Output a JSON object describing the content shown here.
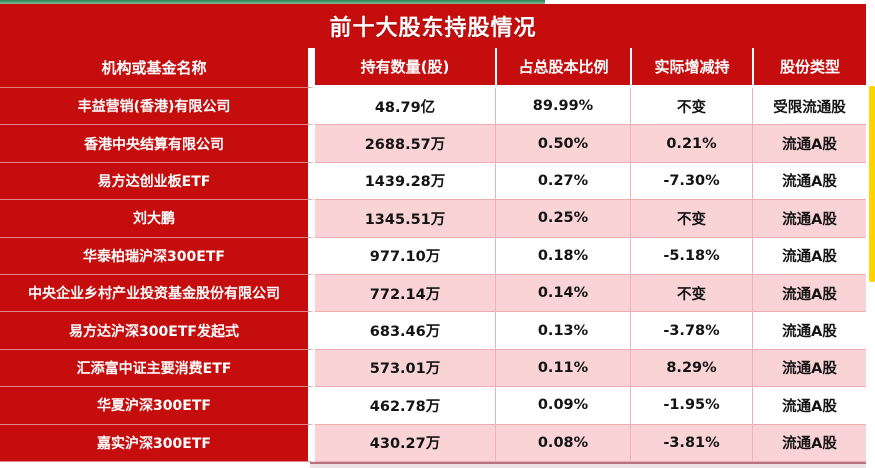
{
  "title": "前十大股东持股情况",
  "table": {
    "columns": [
      "机构或基金名称",
      "持有数量(股)",
      "占总股本比例",
      "实际增减持",
      "股份类型"
    ],
    "rows": [
      {
        "name": "丰益营销(香港)有限公司",
        "qty": "48.79亿",
        "pct": "89.99%",
        "chg": "不变",
        "type": "受限流通股"
      },
      {
        "name": "香港中央结算有限公司",
        "qty": "2688.57万",
        "pct": "0.50%",
        "chg": "0.21%",
        "type": "流通A股"
      },
      {
        "name": "易方达创业板ETF",
        "qty": "1439.28万",
        "pct": "0.27%",
        "chg": "-7.30%",
        "type": "流通A股"
      },
      {
        "name": "刘大鹏",
        "qty": "1345.51万",
        "pct": "0.25%",
        "chg": "不变",
        "type": "流通A股"
      },
      {
        "name": "华泰柏瑞沪深300ETF",
        "qty": "977.10万",
        "pct": "0.18%",
        "chg": "-5.18%",
        "type": "流通A股"
      },
      {
        "name": "中央企业乡村产业投资基金股份有限公司",
        "qty": "772.14万",
        "pct": "0.14%",
        "chg": "不变",
        "type": "流通A股"
      },
      {
        "name": "易方达沪深300ETF发起式",
        "qty": "683.46万",
        "pct": "0.13%",
        "chg": "-3.78%",
        "type": "流通A股"
      },
      {
        "name": "汇添富中证主要消费ETF",
        "qty": "573.01万",
        "pct": "0.11%",
        "chg": "8.29%",
        "type": "流通A股"
      },
      {
        "name": "华夏沪深300ETF",
        "qty": "462.78万",
        "pct": "0.09%",
        "chg": "-1.95%",
        "type": "流通A股"
      },
      {
        "name": "嘉实沪深300ETF",
        "qty": "430.27万",
        "pct": "0.08%",
        "chg": "-3.81%",
        "type": "流通A股"
      }
    ]
  },
  "colors": {
    "panel_red": "#c50d0e",
    "row_pink": "#f9d3d5",
    "row_white": "#ffffff",
    "scrollbar_yellow": "#ffd400",
    "top_strip_green": "#2f7d52",
    "text_white": "#ffffff",
    "text_dark": "#141414"
  }
}
